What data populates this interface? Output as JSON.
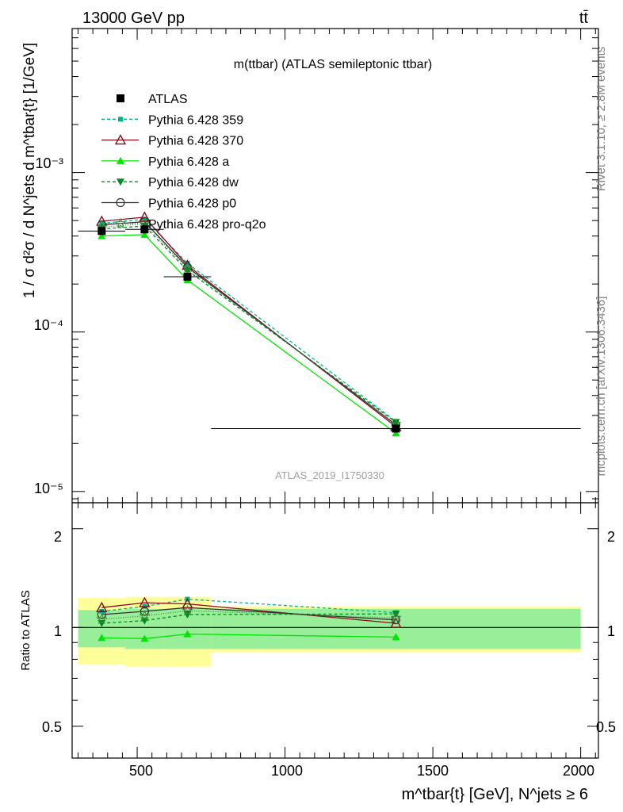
{
  "header": {
    "energy": "13000 GeV pp",
    "process": "tt̄",
    "rivet": "Rivet 3.1.10, ≥ 2.8M events",
    "mcplots": "mcplots.cern.ch [arXiv:1306.3436]"
  },
  "main": {
    "title": "m(ttbar) (ATLAS semileptonic ttbar)",
    "analysis_id": "ATLAS_2019_I1750330",
    "ylabel": "1 / σ d²σ / d N^jets d m^tbar{t} [1/GeV]",
    "ytick_labels": [
      "10⁻³",
      "10⁻⁴",
      "10⁻⁵"
    ]
  },
  "ratio": {
    "ylabel": "Ratio to ATLAS",
    "ytick_labels": [
      "2",
      "1",
      "0.5"
    ]
  },
  "xaxis": {
    "label": "m^tbar{t} [GeV], N^jets ≥ 6",
    "tick_labels": [
      "500",
      "1000",
      "1500",
      "2000"
    ]
  },
  "legend": [
    {
      "label": "ATLAS",
      "color": "#000000",
      "marker": "square-filled",
      "dash": ""
    },
    {
      "label": "Pythia 6.428 359",
      "color": "#00b48c",
      "marker": "square-small",
      "dash": "4,3"
    },
    {
      "label": "Pythia 6.428 370",
      "color": "#8b0a1e",
      "marker": "triangle-open",
      "dash": ""
    },
    {
      "label": "Pythia 6.428 a",
      "color": "#00e600",
      "marker": "triangle-filled",
      "dash": ""
    },
    {
      "label": "Pythia 6.428 dw",
      "color": "#008c1e",
      "marker": "triangle-down",
      "dash": "4,3"
    },
    {
      "label": "Pythia 6.428 p0",
      "color": "#333333",
      "marker": "circle-open",
      "dash": ""
    },
    {
      "label": "Pythia 6.428 pro-q2o",
      "color": "#3c8c3c",
      "marker": "star-open",
      "dash": "1,2"
    }
  ],
  "chart_data": {
    "type": "line",
    "xlim": [
      280,
      2060
    ],
    "ylim": [
      8.5e-06,
      0.008
    ],
    "yscale": "log",
    "ratio_ylim": [
      0.4,
      2.4
    ],
    "ratio_yscale": "log",
    "x": [
      380,
      525,
      670,
      1375
    ],
    "data": {
      "name": "ATLAS",
      "values": [
        0.00043,
        0.00044,
        0.000222,
        2.48e-05
      ],
      "bins": [
        [
          300,
          460
        ],
        [
          460,
          590
        ],
        [
          590,
          750
        ],
        [
          750,
          2000
        ]
      ],
      "band_stat": [
        0.13,
        0.14,
        0.14,
        0.14
      ],
      "band_total": [
        0.23,
        0.24,
        0.24,
        0.16
      ]
    },
    "series": [
      {
        "name": "Pythia 6.428 359",
        "values": [
          0.00048,
          0.00051,
          0.00027,
          2.75e-05
        ],
        "ratio": [
          1.12,
          1.16,
          1.22,
          1.11
        ]
      },
      {
        "name": "Pythia 6.428 370",
        "values": [
          0.000495,
          0.000525,
          0.000262,
          2.55e-05
        ],
        "ratio": [
          1.15,
          1.19,
          1.18,
          1.03
        ]
      },
      {
        "name": "Pythia 6.428 a",
        "values": [
          0.0004,
          0.000408,
          0.000212,
          2.32e-05
        ],
        "ratio": [
          0.93,
          0.925,
          0.955,
          0.935
        ]
      },
      {
        "name": "Pythia 6.428 dw",
        "values": [
          0.000443,
          0.000462,
          0.000243,
          2.72e-05
        ],
        "ratio": [
          1.03,
          1.05,
          1.095,
          1.1
        ]
      },
      {
        "name": "Pythia 6.428 p0",
        "values": [
          0.00047,
          0.000492,
          0.000255,
          2.62e-05
        ],
        "ratio": [
          1.095,
          1.12,
          1.15,
          1.055
        ]
      },
      {
        "name": "Pythia 6.428 pro-q2o",
        "values": [
          0.000455,
          0.000478,
          0.00025,
          2.65e-05
        ],
        "ratio": [
          1.06,
          1.085,
          1.125,
          1.07
        ]
      }
    ]
  }
}
